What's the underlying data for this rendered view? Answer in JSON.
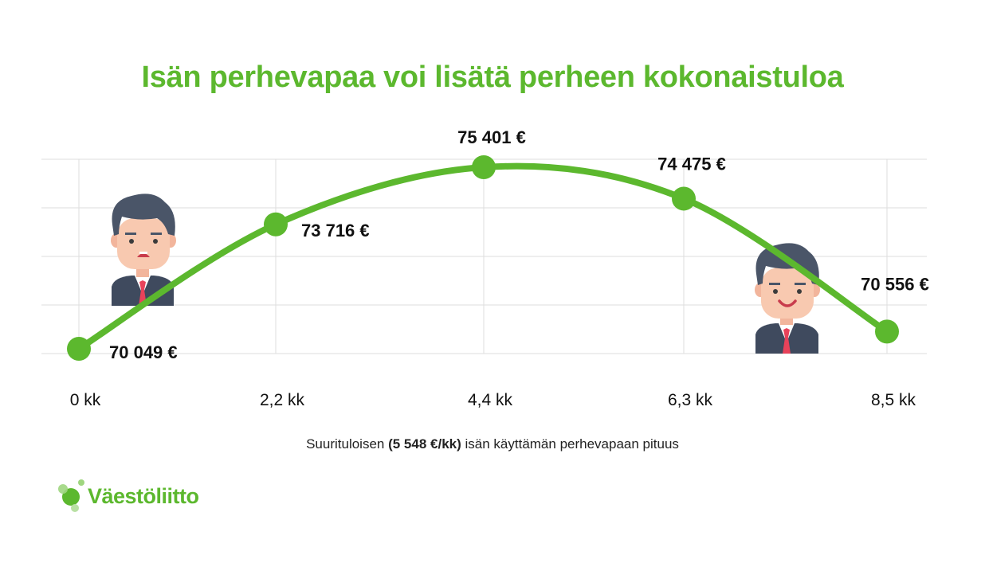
{
  "title": "Isän perhevapaa voi lisätä perheen kokonaistuloa",
  "x_axis_caption": {
    "prefix": "Suurituloisen ",
    "bold": "(5 548 €/kk)",
    "suffix": " isän käyttämän perhevapaan pituus"
  },
  "logo_text": "Väestöliitto",
  "colors": {
    "accent": "#5cb82e",
    "grid": "#dddddd",
    "text": "#111111"
  },
  "icons": {
    "left": "unhappy-man-icon",
    "right": "happy-man-icon"
  },
  "chart_data": {
    "type": "line",
    "categories": [
      "0 kk",
      "2,2 kk",
      "4,4 kk",
      "6,3 kk",
      "8,5 kk"
    ],
    "values": [
      70049,
      73716,
      75401,
      74475,
      70556
    ],
    "value_labels": [
      "70 049 €",
      "73 716 €",
      "75 401 €",
      "74 475 €",
      "70 556 €"
    ],
    "title": "Isän perhevapaa voi lisätä perheen kokonaistuloa",
    "xlabel": "Suurituloisen (5 548 €/kk) isän käyttämän perhevapaan pituus",
    "ylabel": "",
    "ylim": [
      69500,
      75700
    ],
    "grid": true,
    "legend": "none"
  }
}
